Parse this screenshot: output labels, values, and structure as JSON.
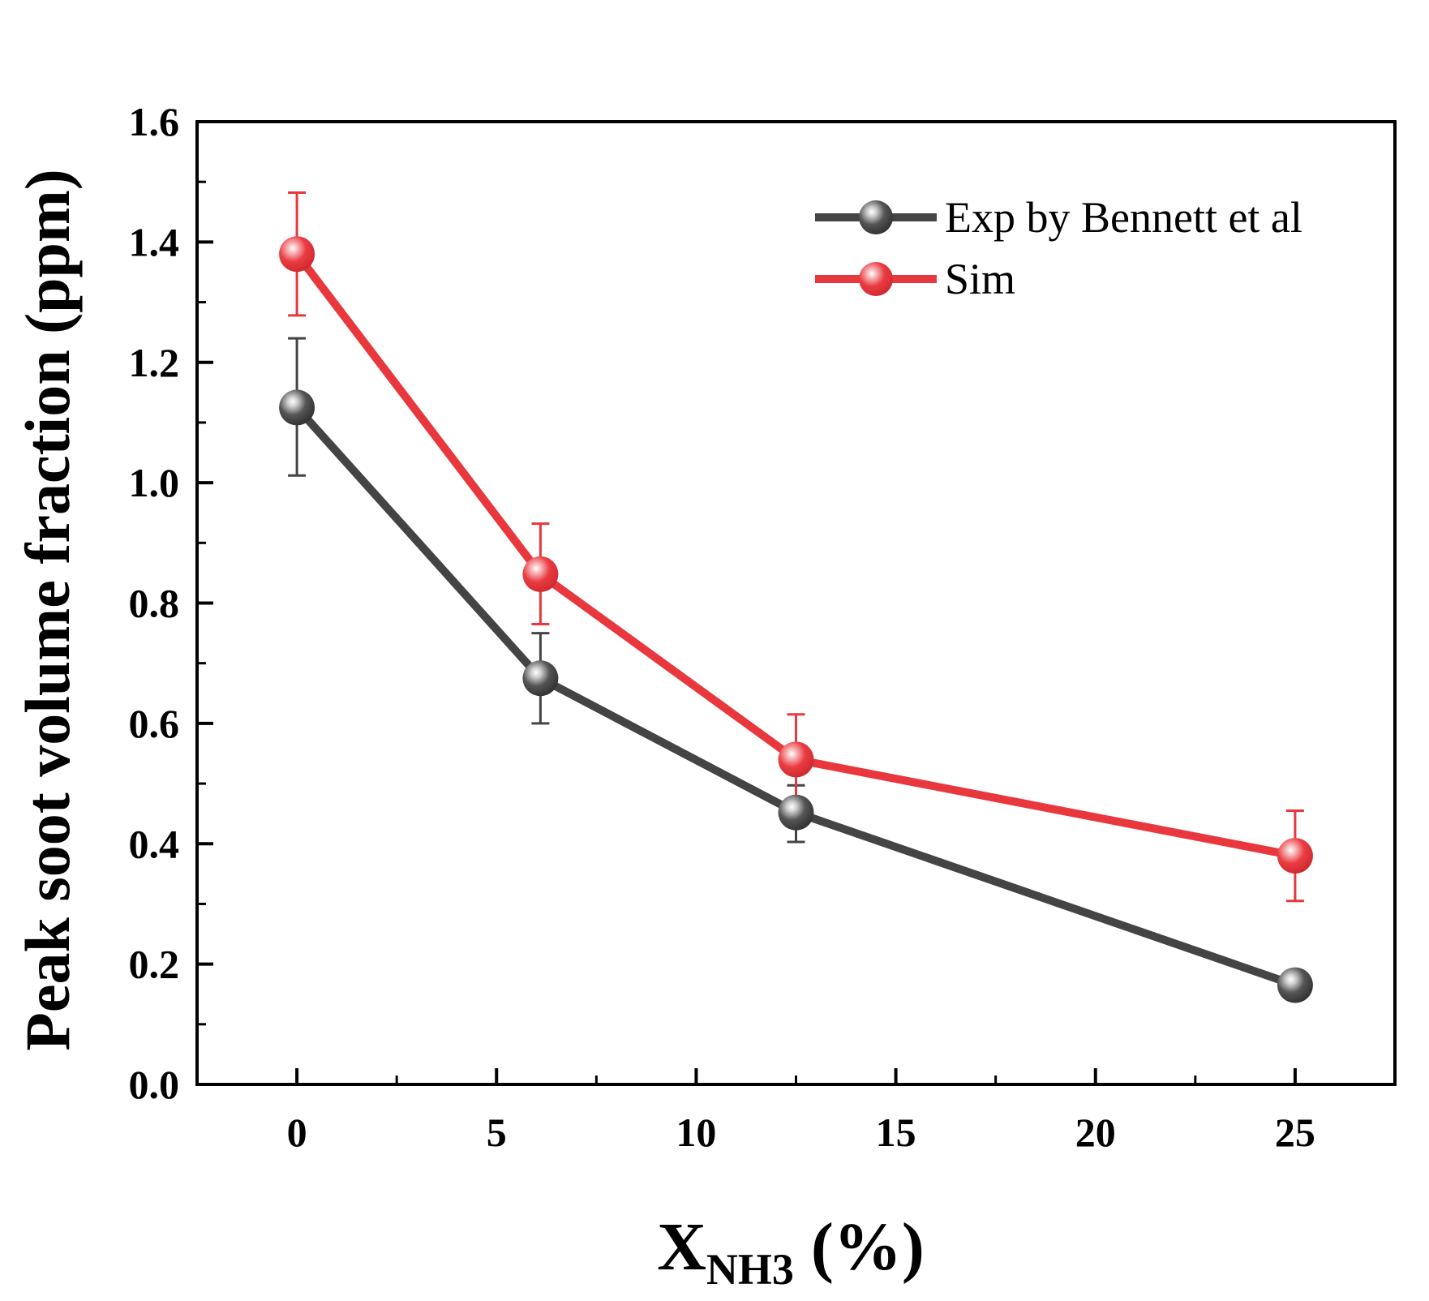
{
  "chart_data": {
    "type": "line",
    "title": "",
    "xlabel": {
      "main": "X",
      "subscript": "NH3",
      "suffix": " (%)"
    },
    "ylabel": "Peak soot volume fraction (ppm)",
    "xlim": [
      -2.5,
      27.5
    ],
    "ylim": [
      0.0,
      1.6
    ],
    "xticks": [
      0,
      5,
      10,
      15,
      20,
      25
    ],
    "xtick_labels": [
      "0",
      "5",
      "10",
      "15",
      "20",
      "25"
    ],
    "yticks": [
      0.0,
      0.2,
      0.4,
      0.6,
      0.8,
      1.0,
      1.2,
      1.4,
      1.6
    ],
    "ytick_labels": [
      "0.0",
      "0.2",
      "0.4",
      "0.6",
      "0.8",
      "1.0",
      "1.2",
      "1.4",
      "1.6"
    ],
    "grid": false,
    "legend_position": "top-right",
    "series": [
      {
        "name": "Exp by Bennett et al",
        "color": "#444444",
        "x": [
          0,
          6.1,
          12.5,
          25
        ],
        "y": [
          1.125,
          0.675,
          0.452,
          0.165
        ],
        "err_low": [
          1.012,
          0.6,
          0.403,
          null
        ],
        "err_high": [
          1.24,
          0.75,
          0.497,
          null
        ]
      },
      {
        "name": "Sim",
        "color": "#e8373d",
        "x": [
          0,
          6.1,
          12.5,
          25
        ],
        "y": [
          1.38,
          0.848,
          0.54,
          0.38
        ],
        "err_low": [
          1.278,
          0.765,
          0.468,
          0.305
        ],
        "err_high": [
          1.482,
          0.932,
          0.615,
          0.455
        ]
      }
    ]
  }
}
